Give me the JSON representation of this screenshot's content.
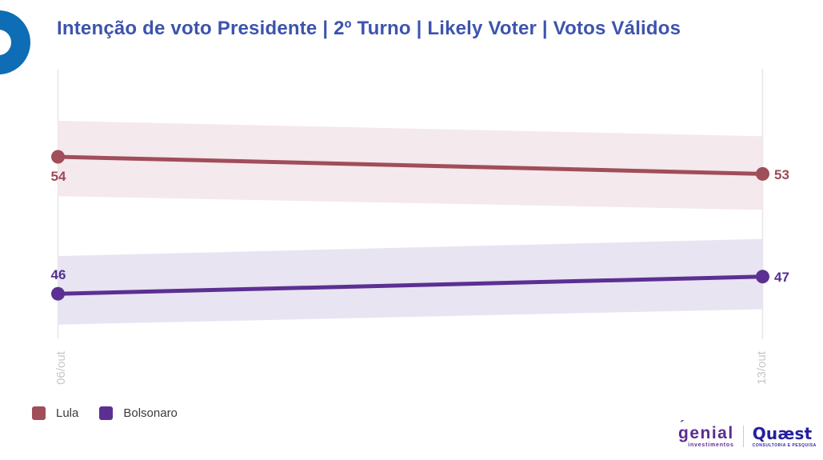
{
  "header": {
    "title": "Intenção de voto Presidente | 2º Turno | Likely Voter | Votos Válidos",
    "title_color": "#3D54AD",
    "brand_ring_color": "#0E6DB4"
  },
  "chart_data": {
    "type": "line",
    "title": "Intenção de voto Presidente | 2º Turno | Likely Voter | Votos Válidos",
    "x": [
      "06/out",
      "13/out"
    ],
    "series": [
      {
        "name": "Lula",
        "values": [
          54,
          53
        ],
        "color": "#A04E59",
        "band_color": "#F4E9EC",
        "band_upper": [
          56.1,
          55.2
        ],
        "band_lower": [
          51.7,
          50.9
        ]
      },
      {
        "name": "Bolsonaro",
        "values": [
          46,
          47
        ],
        "color": "#5B3092",
        "band_color": "#E8E4F1",
        "band_upper": [
          48.2,
          49.2
        ],
        "band_lower": [
          44.2,
          45.1
        ]
      }
    ],
    "grid": "vertical",
    "grid_color": "#E7E7E7",
    "axis_label_color": "#C6C6C6",
    "legend_position": "bottom-left",
    "ylabel": "",
    "xlabel": ""
  },
  "legend": {
    "items": [
      {
        "label": "Lula",
        "color": "#A04E59"
      },
      {
        "label": "Bolsonaro",
        "color": "#5B3092"
      }
    ]
  },
  "footer": {
    "genial": {
      "accent": "´",
      "name": "genial",
      "sub": "investimentos"
    },
    "quaest": {
      "name": "Quæst",
      "sub": "CONSULTORIA E PESQUISA"
    }
  }
}
